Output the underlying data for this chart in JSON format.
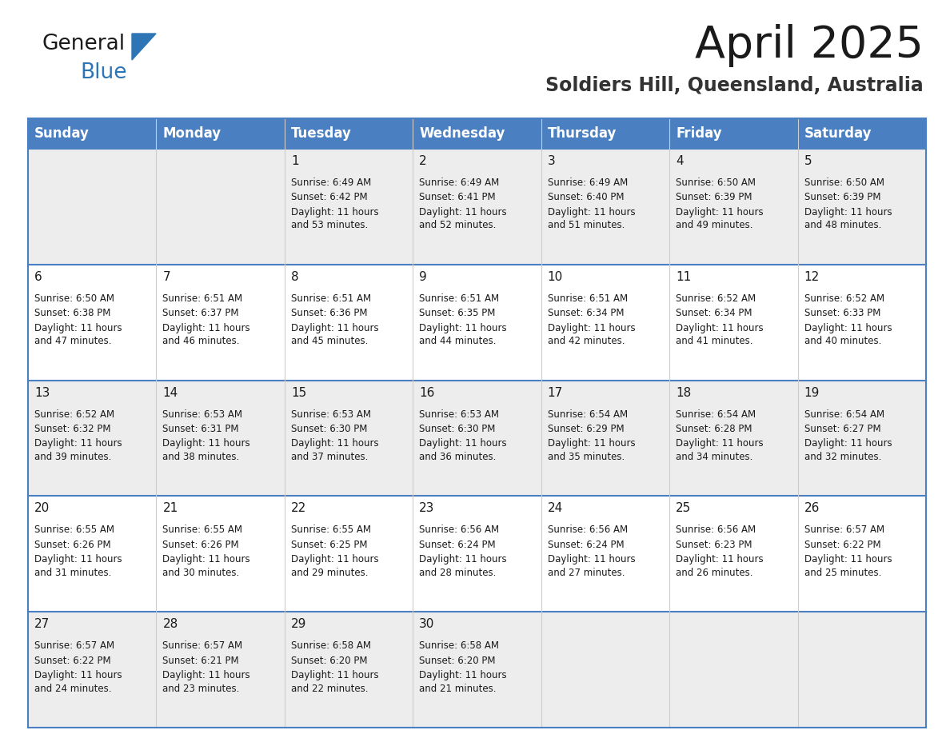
{
  "title": "April 2025",
  "subtitle": "Soldiers Hill, Queensland, Australia",
  "header_bg": "#4A7FC1",
  "header_text_color": "#FFFFFF",
  "header_days": [
    "Sunday",
    "Monday",
    "Tuesday",
    "Wednesday",
    "Thursday",
    "Friday",
    "Saturday"
  ],
  "row_bg_light": "#EDEDED",
  "row_bg_white": "#FFFFFF",
  "cell_border_color": "#4A7FC1",
  "title_color": "#1a1a1a",
  "subtitle_color": "#333333",
  "logo_general_color": "#1a1a1a",
  "logo_blue_color": "#2E75B6",
  "text_color": "#1a1a1a",
  "days_data": [
    {
      "day": 1,
      "col": 2,
      "row": 0,
      "sunrise": "6:49 AM",
      "sunset": "6:42 PM",
      "daylight": "11 hours and 53 minutes."
    },
    {
      "day": 2,
      "col": 3,
      "row": 0,
      "sunrise": "6:49 AM",
      "sunset": "6:41 PM",
      "daylight": "11 hours and 52 minutes."
    },
    {
      "day": 3,
      "col": 4,
      "row": 0,
      "sunrise": "6:49 AM",
      "sunset": "6:40 PM",
      "daylight": "11 hours and 51 minutes."
    },
    {
      "day": 4,
      "col": 5,
      "row": 0,
      "sunrise": "6:50 AM",
      "sunset": "6:39 PM",
      "daylight": "11 hours and 49 minutes."
    },
    {
      "day": 5,
      "col": 6,
      "row": 0,
      "sunrise": "6:50 AM",
      "sunset": "6:39 PM",
      "daylight": "11 hours and 48 minutes."
    },
    {
      "day": 6,
      "col": 0,
      "row": 1,
      "sunrise": "6:50 AM",
      "sunset": "6:38 PM",
      "daylight": "11 hours and 47 minutes."
    },
    {
      "day": 7,
      "col": 1,
      "row": 1,
      "sunrise": "6:51 AM",
      "sunset": "6:37 PM",
      "daylight": "11 hours and 46 minutes."
    },
    {
      "day": 8,
      "col": 2,
      "row": 1,
      "sunrise": "6:51 AM",
      "sunset": "6:36 PM",
      "daylight": "11 hours and 45 minutes."
    },
    {
      "day": 9,
      "col": 3,
      "row": 1,
      "sunrise": "6:51 AM",
      "sunset": "6:35 PM",
      "daylight": "11 hours and 44 minutes."
    },
    {
      "day": 10,
      "col": 4,
      "row": 1,
      "sunrise": "6:51 AM",
      "sunset": "6:34 PM",
      "daylight": "11 hours and 42 minutes."
    },
    {
      "day": 11,
      "col": 5,
      "row": 1,
      "sunrise": "6:52 AM",
      "sunset": "6:34 PM",
      "daylight": "11 hours and 41 minutes."
    },
    {
      "day": 12,
      "col": 6,
      "row": 1,
      "sunrise": "6:52 AM",
      "sunset": "6:33 PM",
      "daylight": "11 hours and 40 minutes."
    },
    {
      "day": 13,
      "col": 0,
      "row": 2,
      "sunrise": "6:52 AM",
      "sunset": "6:32 PM",
      "daylight": "11 hours and 39 minutes."
    },
    {
      "day": 14,
      "col": 1,
      "row": 2,
      "sunrise": "6:53 AM",
      "sunset": "6:31 PM",
      "daylight": "11 hours and 38 minutes."
    },
    {
      "day": 15,
      "col": 2,
      "row": 2,
      "sunrise": "6:53 AM",
      "sunset": "6:30 PM",
      "daylight": "11 hours and 37 minutes."
    },
    {
      "day": 16,
      "col": 3,
      "row": 2,
      "sunrise": "6:53 AM",
      "sunset": "6:30 PM",
      "daylight": "11 hours and 36 minutes."
    },
    {
      "day": 17,
      "col": 4,
      "row": 2,
      "sunrise": "6:54 AM",
      "sunset": "6:29 PM",
      "daylight": "11 hours and 35 minutes."
    },
    {
      "day": 18,
      "col": 5,
      "row": 2,
      "sunrise": "6:54 AM",
      "sunset": "6:28 PM",
      "daylight": "11 hours and 34 minutes."
    },
    {
      "day": 19,
      "col": 6,
      "row": 2,
      "sunrise": "6:54 AM",
      "sunset": "6:27 PM",
      "daylight": "11 hours and 32 minutes."
    },
    {
      "day": 20,
      "col": 0,
      "row": 3,
      "sunrise": "6:55 AM",
      "sunset": "6:26 PM",
      "daylight": "11 hours and 31 minutes."
    },
    {
      "day": 21,
      "col": 1,
      "row": 3,
      "sunrise": "6:55 AM",
      "sunset": "6:26 PM",
      "daylight": "11 hours and 30 minutes."
    },
    {
      "day": 22,
      "col": 2,
      "row": 3,
      "sunrise": "6:55 AM",
      "sunset": "6:25 PM",
      "daylight": "11 hours and 29 minutes."
    },
    {
      "day": 23,
      "col": 3,
      "row": 3,
      "sunrise": "6:56 AM",
      "sunset": "6:24 PM",
      "daylight": "11 hours and 28 minutes."
    },
    {
      "day": 24,
      "col": 4,
      "row": 3,
      "sunrise": "6:56 AM",
      "sunset": "6:24 PM",
      "daylight": "11 hours and 27 minutes."
    },
    {
      "day": 25,
      "col": 5,
      "row": 3,
      "sunrise": "6:56 AM",
      "sunset": "6:23 PM",
      "daylight": "11 hours and 26 minutes."
    },
    {
      "day": 26,
      "col": 6,
      "row": 3,
      "sunrise": "6:57 AM",
      "sunset": "6:22 PM",
      "daylight": "11 hours and 25 minutes."
    },
    {
      "day": 27,
      "col": 0,
      "row": 4,
      "sunrise": "6:57 AM",
      "sunset": "6:22 PM",
      "daylight": "11 hours and 24 minutes."
    },
    {
      "day": 28,
      "col": 1,
      "row": 4,
      "sunrise": "6:57 AM",
      "sunset": "6:21 PM",
      "daylight": "11 hours and 23 minutes."
    },
    {
      "day": 29,
      "col": 2,
      "row": 4,
      "sunrise": "6:58 AM",
      "sunset": "6:20 PM",
      "daylight": "11 hours and 22 minutes."
    },
    {
      "day": 30,
      "col": 3,
      "row": 4,
      "sunrise": "6:58 AM",
      "sunset": "6:20 PM",
      "daylight": "11 hours and 21 minutes."
    }
  ]
}
